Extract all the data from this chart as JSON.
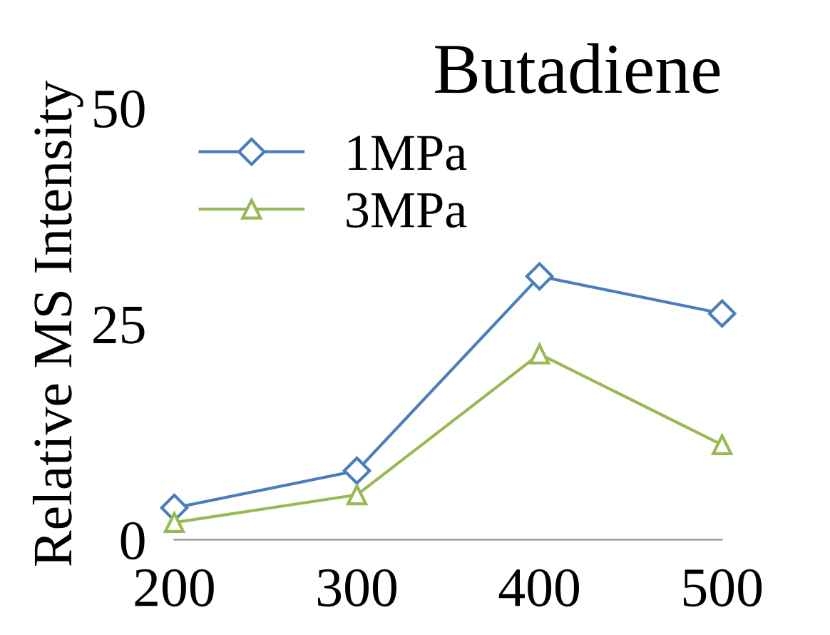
{
  "chart_data": {
    "type": "line",
    "title": "Butadiene",
    "ylabel": "Relative MS Intensity",
    "x": [
      200,
      300,
      400,
      500
    ],
    "xlim": [
      200,
      500
    ],
    "xticks": [
      200,
      300,
      400,
      500
    ],
    "ylim": [
      0,
      50
    ],
    "yticks": [
      0,
      25,
      50
    ],
    "grid": false,
    "legend": "top left",
    "line_style": "solid",
    "series": [
      {
        "name": "1MPa",
        "color": "#4a7ebb",
        "marker": "diamond",
        "values": [
          3.7,
          8,
          30.5,
          26.2
        ]
      },
      {
        "name": "3MPa",
        "color": "#98b954",
        "marker": "triangle",
        "values": [
          2,
          5.2,
          21.5,
          11
        ]
      }
    ]
  }
}
